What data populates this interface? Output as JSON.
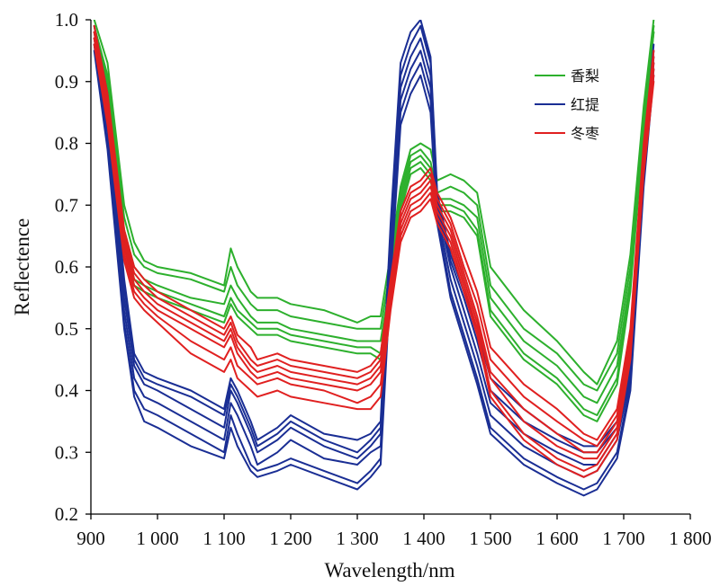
{
  "chart_data": {
    "type": "line",
    "title": "",
    "xlabel": "Wavelength/nm",
    "ylabel": "Reflectence",
    "xlim": [
      900,
      1800
    ],
    "ylim": [
      0.2,
      1.0
    ],
    "x_ticks": [
      "900",
      "1 000",
      "1 100",
      "1 200",
      "1 300",
      "1 400",
      "1 500",
      "1 600",
      "1 700",
      "1 800"
    ],
    "y_ticks": [
      "0.2",
      "0.3",
      "0.4",
      "0.5",
      "0.6",
      "0.7",
      "0.8",
      "0.9",
      "1.0"
    ],
    "grid": false,
    "legend_position": "top-right",
    "x": [
      905,
      925,
      950,
      965,
      980,
      1000,
      1050,
      1100,
      1110,
      1120,
      1140,
      1150,
      1180,
      1200,
      1250,
      1300,
      1320,
      1335,
      1350,
      1365,
      1380,
      1395,
      1410,
      1420,
      1440,
      1460,
      1480,
      1500,
      1550,
      1600,
      1640,
      1660,
      1690,
      1710,
      1730,
      1745
    ],
    "series": [
      {
        "name": "香梨",
        "color": "#2db02d",
        "lines": [
          [
            1.0,
            0.93,
            0.7,
            0.64,
            0.61,
            0.6,
            0.59,
            0.57,
            0.63,
            0.6,
            0.56,
            0.55,
            0.55,
            0.54,
            0.53,
            0.51,
            0.52,
            0.52,
            0.62,
            0.73,
            0.79,
            0.8,
            0.79,
            0.74,
            0.75,
            0.74,
            0.72,
            0.6,
            0.53,
            0.48,
            0.43,
            0.41,
            0.48,
            0.62,
            0.86,
            1.0
          ],
          [
            0.99,
            0.91,
            0.68,
            0.62,
            0.6,
            0.59,
            0.58,
            0.56,
            0.6,
            0.57,
            0.54,
            0.53,
            0.53,
            0.52,
            0.51,
            0.5,
            0.5,
            0.5,
            0.6,
            0.72,
            0.78,
            0.79,
            0.77,
            0.72,
            0.73,
            0.72,
            0.7,
            0.57,
            0.5,
            0.46,
            0.41,
            0.4,
            0.46,
            0.6,
            0.85,
            0.99
          ],
          [
            0.98,
            0.9,
            0.66,
            0.6,
            0.58,
            0.57,
            0.55,
            0.54,
            0.57,
            0.55,
            0.52,
            0.51,
            0.51,
            0.5,
            0.49,
            0.48,
            0.48,
            0.48,
            0.58,
            0.71,
            0.77,
            0.78,
            0.76,
            0.71,
            0.71,
            0.7,
            0.68,
            0.55,
            0.48,
            0.44,
            0.39,
            0.38,
            0.44,
            0.58,
            0.84,
            0.99
          ],
          [
            0.98,
            0.9,
            0.65,
            0.58,
            0.57,
            0.56,
            0.54,
            0.52,
            0.55,
            0.53,
            0.51,
            0.5,
            0.5,
            0.49,
            0.48,
            0.47,
            0.47,
            0.46,
            0.57,
            0.7,
            0.76,
            0.77,
            0.75,
            0.7,
            0.7,
            0.69,
            0.66,
            0.53,
            0.46,
            0.42,
            0.37,
            0.36,
            0.42,
            0.57,
            0.83,
            0.98
          ],
          [
            0.97,
            0.89,
            0.64,
            0.57,
            0.56,
            0.55,
            0.53,
            0.51,
            0.54,
            0.52,
            0.5,
            0.49,
            0.49,
            0.48,
            0.47,
            0.46,
            0.46,
            0.45,
            0.56,
            0.69,
            0.75,
            0.76,
            0.74,
            0.69,
            0.69,
            0.68,
            0.65,
            0.52,
            0.45,
            0.41,
            0.36,
            0.35,
            0.41,
            0.56,
            0.82,
            0.98
          ]
        ]
      },
      {
        "name": "红提",
        "color": "#1a2e94",
        "lines": [
          [
            0.99,
            0.88,
            0.58,
            0.46,
            0.43,
            0.42,
            0.4,
            0.37,
            0.42,
            0.4,
            0.35,
            0.32,
            0.34,
            0.36,
            0.33,
            0.32,
            0.33,
            0.35,
            0.67,
            0.93,
            0.98,
            1.0,
            0.94,
            0.72,
            0.62,
            0.56,
            0.5,
            0.42,
            0.37,
            0.33,
            0.31,
            0.31,
            0.35,
            0.45,
            0.78,
            0.96
          ],
          [
            0.98,
            0.86,
            0.57,
            0.45,
            0.42,
            0.41,
            0.39,
            0.36,
            0.41,
            0.39,
            0.34,
            0.31,
            0.33,
            0.35,
            0.32,
            0.3,
            0.32,
            0.34,
            0.66,
            0.91,
            0.96,
            0.99,
            0.93,
            0.71,
            0.61,
            0.55,
            0.48,
            0.4,
            0.35,
            0.32,
            0.3,
            0.3,
            0.34,
            0.44,
            0.77,
            0.95
          ],
          [
            0.97,
            0.84,
            0.55,
            0.44,
            0.41,
            0.4,
            0.37,
            0.34,
            0.4,
            0.38,
            0.33,
            0.3,
            0.32,
            0.34,
            0.31,
            0.29,
            0.31,
            0.33,
            0.64,
            0.89,
            0.94,
            0.97,
            0.91,
            0.7,
            0.6,
            0.53,
            0.46,
            0.38,
            0.33,
            0.3,
            0.28,
            0.28,
            0.33,
            0.43,
            0.76,
            0.94
          ],
          [
            0.96,
            0.82,
            0.53,
            0.42,
            0.39,
            0.38,
            0.35,
            0.32,
            0.38,
            0.36,
            0.31,
            0.28,
            0.3,
            0.32,
            0.29,
            0.28,
            0.3,
            0.31,
            0.62,
            0.87,
            0.92,
            0.95,
            0.89,
            0.69,
            0.58,
            0.51,
            0.44,
            0.36,
            0.31,
            0.28,
            0.26,
            0.27,
            0.32,
            0.42,
            0.75,
            0.93
          ],
          [
            0.96,
            0.8,
            0.51,
            0.4,
            0.37,
            0.36,
            0.33,
            0.3,
            0.36,
            0.33,
            0.28,
            0.27,
            0.28,
            0.29,
            0.27,
            0.25,
            0.27,
            0.29,
            0.6,
            0.85,
            0.9,
            0.93,
            0.87,
            0.68,
            0.56,
            0.49,
            0.42,
            0.34,
            0.29,
            0.26,
            0.24,
            0.25,
            0.3,
            0.41,
            0.74,
            0.92
          ],
          [
            0.95,
            0.79,
            0.5,
            0.39,
            0.35,
            0.34,
            0.31,
            0.29,
            0.34,
            0.31,
            0.27,
            0.26,
            0.27,
            0.28,
            0.26,
            0.24,
            0.26,
            0.28,
            0.58,
            0.83,
            0.88,
            0.91,
            0.85,
            0.67,
            0.55,
            0.48,
            0.41,
            0.33,
            0.28,
            0.25,
            0.23,
            0.24,
            0.29,
            0.4,
            0.73,
            0.91
          ]
        ]
      },
      {
        "name": "冬枣",
        "color": "#e02020",
        "lines": [
          [
            0.99,
            0.88,
            0.66,
            0.6,
            0.58,
            0.56,
            0.53,
            0.5,
            0.52,
            0.49,
            0.47,
            0.45,
            0.46,
            0.45,
            0.44,
            0.43,
            0.44,
            0.46,
            0.58,
            0.69,
            0.73,
            0.74,
            0.76,
            0.72,
            0.68,
            0.62,
            0.56,
            0.47,
            0.41,
            0.37,
            0.33,
            0.32,
            0.37,
            0.5,
            0.8,
            0.95
          ],
          [
            0.98,
            0.87,
            0.65,
            0.59,
            0.57,
            0.55,
            0.52,
            0.49,
            0.51,
            0.48,
            0.45,
            0.44,
            0.45,
            0.44,
            0.43,
            0.42,
            0.43,
            0.45,
            0.57,
            0.68,
            0.72,
            0.73,
            0.75,
            0.71,
            0.67,
            0.6,
            0.54,
            0.45,
            0.39,
            0.35,
            0.32,
            0.31,
            0.36,
            0.49,
            0.79,
            0.94
          ],
          [
            0.98,
            0.86,
            0.64,
            0.58,
            0.56,
            0.54,
            0.51,
            0.48,
            0.5,
            0.47,
            0.44,
            0.43,
            0.44,
            0.43,
            0.42,
            0.41,
            0.42,
            0.44,
            0.56,
            0.67,
            0.71,
            0.72,
            0.74,
            0.7,
            0.66,
            0.59,
            0.52,
            0.43,
            0.37,
            0.33,
            0.3,
            0.3,
            0.35,
            0.48,
            0.78,
            0.93
          ],
          [
            0.97,
            0.85,
            0.63,
            0.57,
            0.55,
            0.53,
            0.5,
            0.47,
            0.49,
            0.46,
            0.43,
            0.42,
            0.43,
            0.42,
            0.41,
            0.4,
            0.41,
            0.43,
            0.55,
            0.66,
            0.7,
            0.71,
            0.73,
            0.69,
            0.65,
            0.58,
            0.51,
            0.42,
            0.35,
            0.31,
            0.29,
            0.29,
            0.34,
            0.47,
            0.77,
            0.92
          ],
          [
            0.97,
            0.84,
            0.62,
            0.56,
            0.54,
            0.52,
            0.48,
            0.45,
            0.47,
            0.44,
            0.42,
            0.41,
            0.42,
            0.41,
            0.4,
            0.38,
            0.39,
            0.41,
            0.54,
            0.65,
            0.69,
            0.7,
            0.72,
            0.68,
            0.64,
            0.57,
            0.5,
            0.4,
            0.33,
            0.29,
            0.27,
            0.28,
            0.33,
            0.46,
            0.76,
            0.91
          ],
          [
            0.96,
            0.83,
            0.61,
            0.55,
            0.53,
            0.51,
            0.46,
            0.43,
            0.45,
            0.42,
            0.4,
            0.39,
            0.4,
            0.39,
            0.38,
            0.37,
            0.37,
            0.39,
            0.53,
            0.64,
            0.68,
            0.69,
            0.71,
            0.67,
            0.63,
            0.56,
            0.49,
            0.39,
            0.32,
            0.28,
            0.26,
            0.27,
            0.32,
            0.45,
            0.75,
            0.9
          ]
        ]
      }
    ]
  }
}
